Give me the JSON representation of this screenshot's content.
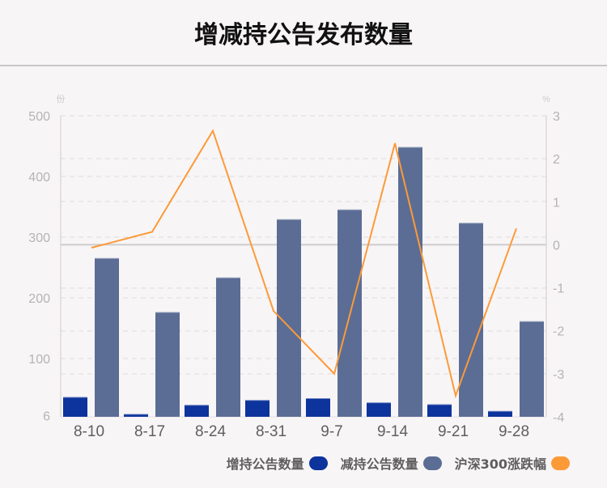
{
  "title": "增减持公告发布数量",
  "legend": [
    {
      "label": "增持公告数量",
      "color": "#0d339c"
    },
    {
      "label": "减持公告数量",
      "color": "#5b6d95"
    },
    {
      "label": "沪深300涨跌幅",
      "color": "#fc9a38"
    }
  ],
  "chart_data": {
    "type": "bar",
    "title": "增减持公告发布数量",
    "categories": [
      "8-10",
      "8-17",
      "8-24",
      "8-31",
      "9-7",
      "9-14",
      "9-21",
      "9-28"
    ],
    "series": [
      {
        "name": "增持公告数量",
        "type": "bar",
        "axis": "left",
        "color": "#0d339c",
        "values": [
          36,
          8,
          23,
          31,
          34,
          27,
          24,
          13
        ]
      },
      {
        "name": "减持公告数量",
        "type": "bar",
        "axis": "left",
        "color": "#5b6d95",
        "values": [
          265,
          176,
          233,
          329,
          345,
          448,
          323,
          161
        ]
      },
      {
        "name": "沪深300涨跌幅",
        "type": "line",
        "axis": "right",
        "color": "#fc9a38",
        "values": [
          -0.07,
          0.3,
          2.65,
          -1.54,
          -3.0,
          2.36,
          -3.51,
          0.38
        ]
      }
    ],
    "left_axis": {
      "unit": "份",
      "ylim": [
        6,
        500
      ],
      "ticks": [
        500,
        400,
        300,
        200,
        100,
        6
      ]
    },
    "right_axis": {
      "unit": "%",
      "ylim": [
        -4,
        3
      ],
      "ticks": [
        3,
        2,
        1,
        0,
        -1,
        -2,
        -3,
        -4
      ]
    },
    "xlabel": "",
    "ylabel": "份",
    "ylabel_right": "%",
    "grid": true,
    "legend_position": "bottom-right"
  }
}
